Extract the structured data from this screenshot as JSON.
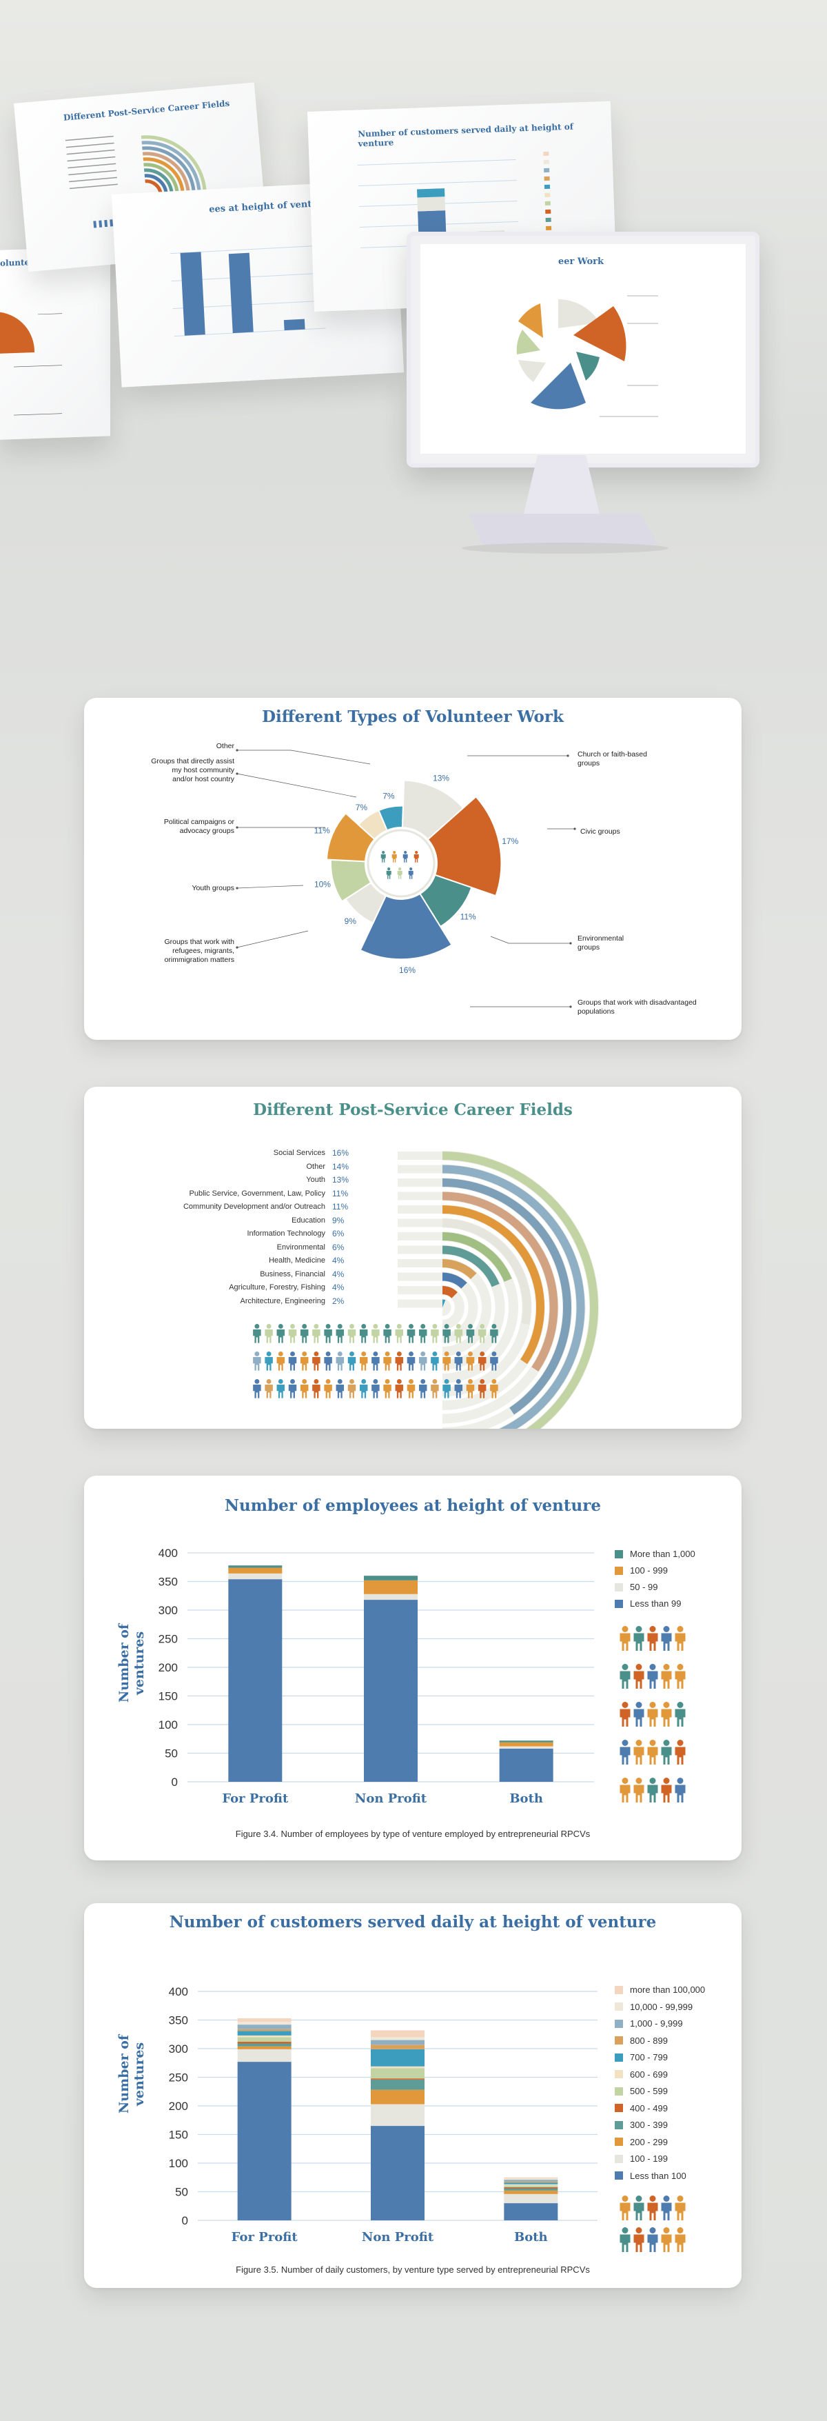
{
  "colors": {
    "blue": "#4f7cae",
    "orange": "#cf6426",
    "teal": "#4a8f8a",
    "amber": "#e0983b",
    "beige": "#f0e2c3",
    "sage": "#c2d4a3",
    "light": "#e6e6df",
    "sky": "#3d9dbe",
    "navy": "#3b6fa3",
    "grid": "#c9dbe9"
  },
  "hero": {
    "screen1_title": "Different Post-Service Career Fields",
    "screen2_title": "Number of customers served daily at height of venture",
    "screen3_title": "ees at height of venture",
    "screen4_title": "olunteer Work",
    "monitor_title": "eer Work",
    "icons": [
      "person-icon"
    ]
  },
  "volunteer": {
    "title": "Different Types of Volunteer Work",
    "chart_data": {
      "type": "pie",
      "title": "Different Types of Volunteer Work",
      "slices": [
        {
          "label": "Church or faith-based groups",
          "value": 13,
          "pct": "13%",
          "color": "#e6e6df"
        },
        {
          "label": "Civic groups",
          "value": 17,
          "pct": "17%",
          "color": "#cf6426"
        },
        {
          "label": "Environmental groups",
          "value": 11,
          "pct": "11%",
          "color": "#4a8f8a"
        },
        {
          "label": "Groups that work with disadvantaged populations",
          "value": 16,
          "pct": "16%",
          "color": "#4f7cae"
        },
        {
          "label": "Groups that work with refugees, migrants, orimmigration matters",
          "value": 9,
          "pct": "9%",
          "color": "#e6e6df"
        },
        {
          "label": "Youth groups",
          "value": 10,
          "pct": "10%",
          "color": "#c2d4a3"
        },
        {
          "label": "Political campaigns or advocacy groups",
          "value": 11,
          "pct": "11%",
          "color": "#e0983b"
        },
        {
          "label": "Groups that directly assist my host community and/or host country",
          "value": 7,
          "pct": "7%",
          "color": "#f0e2c3"
        },
        {
          "label": "Other",
          "value": 7,
          "pct": "7%",
          "color": "#3d9dbe"
        }
      ]
    },
    "labels": {
      "church": [
        "Church or faith-based",
        "groups"
      ],
      "civic": [
        "Civic groups"
      ],
      "environmental": [
        "Environmental",
        "groups"
      ],
      "disadvantaged": [
        "Groups that work with disadvantaged",
        "populations"
      ],
      "refugees": [
        "Groups that work with",
        "refugees, migrants,",
        "orimmigration matters"
      ],
      "youth": [
        "Youth groups"
      ],
      "political": [
        "Political campaigns or",
        "advocacy groups"
      ],
      "host": [
        "Groups that directly assist",
        "my host community",
        "and/or host country"
      ],
      "other": [
        "Other"
      ]
    }
  },
  "career": {
    "title": "Different Post-Service Career Fields",
    "chart_data": {
      "type": "bar",
      "title": "Different Post-Service Career Fields",
      "categories": [
        "Social Services",
        "Other",
        "Youth",
        "Public Service, Government, Law, Policy",
        "Community Development and/or Outreach",
        "Education",
        "Information Technology",
        "Environmental",
        "Health, Medicine",
        "Business, Financial",
        "Agriculture, Forestry, Fishing",
        "Architecture, Engineering"
      ],
      "values": [
        16,
        14,
        13,
        11,
        11,
        9,
        6,
        6,
        4,
        4,
        4,
        2
      ],
      "pcts": [
        "16%",
        "14%",
        "13%",
        "11%",
        "11%",
        "9%",
        "6%",
        "6%",
        "4%",
        "4%",
        "4%",
        "2%"
      ],
      "colors": [
        "#c2d4a3",
        "#8eafc4",
        "#7e9fb8",
        "#d1a383",
        "#e0983b",
        "#e6e6df",
        "#a2bf83",
        "#5f9c97",
        "#d9a25c",
        "#4f7cae",
        "#cf6426",
        "#3d9dbe"
      ]
    }
  },
  "employees": {
    "title": "Number of employees at height of venture",
    "ylabel": "Number of ventures",
    "caption": "Figure 3.4. Number of employees by type of venture employed by entrepreneurial RPCVs",
    "chart_data": {
      "type": "bar",
      "title": "Number of employees at height of venture",
      "ylabel": "Number of ventures",
      "categories": [
        "For Profit",
        "Non Profit",
        "Both"
      ],
      "ylim": [
        0,
        400
      ],
      "yticks": [
        0,
        50,
        100,
        150,
        200,
        250,
        300,
        350,
        400
      ],
      "series": [
        {
          "name": "Less than 99",
          "color": "#4f7cae",
          "values": [
            354,
            318,
            58
          ]
        },
        {
          "name": "50 - 99",
          "color": "#e6e6df",
          "values": [
            10,
            10,
            4
          ]
        },
        {
          "name": "100 - 999",
          "color": "#e0983b",
          "values": [
            10,
            24,
            7
          ]
        },
        {
          "name": "More than 1,000",
          "color": "#4a8f8a",
          "values": [
            4,
            8,
            3
          ]
        }
      ],
      "legend": [
        "More than 1,000",
        "100 - 999",
        "50 - 99",
        "Less than 99"
      ]
    }
  },
  "customers": {
    "title": "Number of customers served daily at height of venture",
    "ylabel": "Number of ventures",
    "caption": "Figure 3.5. Number of daily customers, by venture type served by entrepreneurial RPCVs",
    "chart_data": {
      "type": "bar",
      "title": "Number of customers served daily at height of venture",
      "ylabel": "Number of ventures",
      "categories": [
        "For Profit",
        "Non Profit",
        "Both"
      ],
      "ylim": [
        0,
        400
      ],
      "yticks": [
        0,
        50,
        100,
        150,
        200,
        250,
        300,
        350,
        400
      ],
      "series": [
        {
          "name": "Less than 100",
          "color": "#4f7cae",
          "values": [
            277,
            165,
            30
          ]
        },
        {
          "name": "100 - 199",
          "color": "#e6e6df",
          "values": [
            22,
            38,
            16
          ]
        },
        {
          "name": "200 - 299",
          "color": "#e0983b",
          "values": [
            5,
            25,
            6
          ]
        },
        {
          "name": "300 - 399",
          "color": "#5f9c97",
          "values": [
            5,
            18,
            4
          ]
        },
        {
          "name": "400 - 499",
          "color": "#cf6426",
          "values": [
            3,
            2,
            2
          ]
        },
        {
          "name": "500 - 599",
          "color": "#c2d4a3",
          "values": [
            8,
            18,
            3
          ]
        },
        {
          "name": "600 - 699",
          "color": "#f0e2c3",
          "values": [
            3,
            3,
            2
          ]
        },
        {
          "name": "700 - 799",
          "color": "#3d9dbe",
          "values": [
            8,
            30,
            3
          ]
        },
        {
          "name": "800 - 899",
          "color": "#d9a25c",
          "values": [
            3,
            8,
            2
          ]
        },
        {
          "name": "1,000 - 9,999",
          "color": "#8eafc4",
          "values": [
            8,
            8,
            3
          ]
        },
        {
          "name": "10,000 - 99,999",
          "color": "#efe8d8",
          "values": [
            5,
            5,
            2
          ]
        },
        {
          "name": "more than 100,000",
          "color": "#f4d6bf",
          "values": [
            6,
            12,
            2
          ]
        }
      ],
      "legend": [
        "more than 100,000",
        "10,000 - 99,999",
        "1,000 - 9,999",
        "800 - 899",
        "700 - 799",
        "600 - 699",
        "500 - 599",
        "400 - 499",
        "300 - 399",
        "200 - 299",
        "100 - 199",
        "Less than 100"
      ]
    }
  }
}
